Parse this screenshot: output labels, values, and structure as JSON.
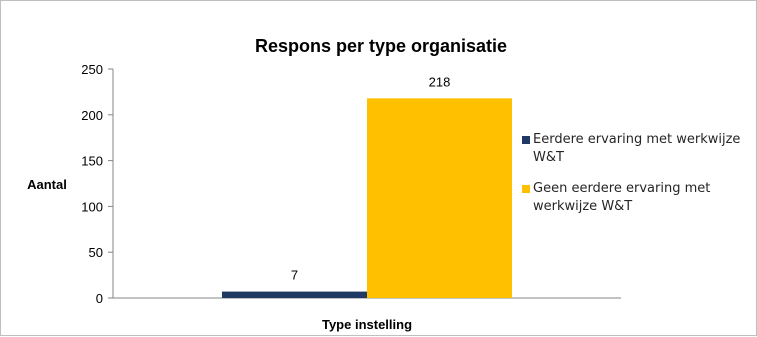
{
  "chart_data": {
    "type": "bar",
    "title": "Respons per type organisatie",
    "xlabel": "Type instelling",
    "ylabel": "Aantal",
    "ylim": [
      0,
      250
    ],
    "yticks": [
      0,
      50,
      100,
      150,
      200,
      250
    ],
    "categories": [
      ""
    ],
    "series": [
      {
        "name": "Eerdere ervaring met werkwijze W&T",
        "values": [
          7
        ],
        "color": "#1f3864"
      },
      {
        "name": "Geen eerdere ervaring met werkwijze W&T",
        "values": [
          218
        ],
        "color": "#ffc000"
      }
    ],
    "data_labels": true,
    "grid": false,
    "legend_position": "right"
  }
}
